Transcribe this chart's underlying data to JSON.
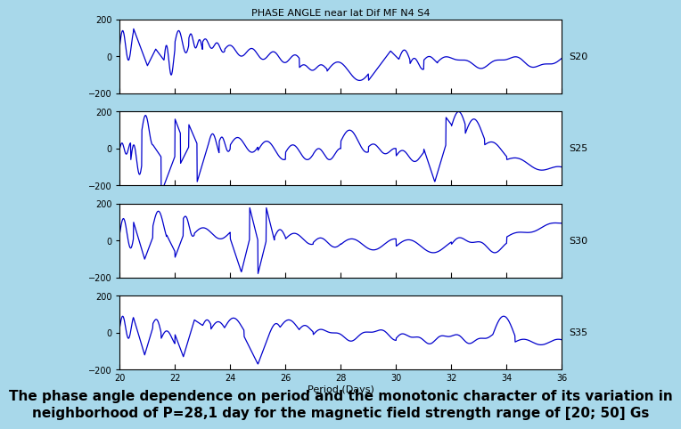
{
  "title": "PHASE ANGLE near lat Dif MF N4 S4",
  "xlabel": "Period (Days)",
  "xlim": [
    20,
    36
  ],
  "xticks": [
    20,
    22,
    24,
    26,
    28,
    30,
    32,
    34,
    36
  ],
  "ylim": [
    -200,
    200
  ],
  "yticks": [
    -200,
    0,
    200
  ],
  "labels": [
    "S20",
    "S25",
    "S30",
    "S35"
  ],
  "line_color": "#0000cc",
  "bg_color": "#a8d8ea",
  "plot_bg": "#ffffff",
  "caption_line1": "The phase angle dependence on period and the monotonic character of its variation in",
  "caption_line2": "neighborhood of P=28,1 day for the magnetic field strength range of [20; 50] Gs",
  "caption_color": "#000000",
  "title_fontsize": 8,
  "axis_fontsize": 7,
  "caption_fontsize": 11,
  "label_fontsize": 8
}
